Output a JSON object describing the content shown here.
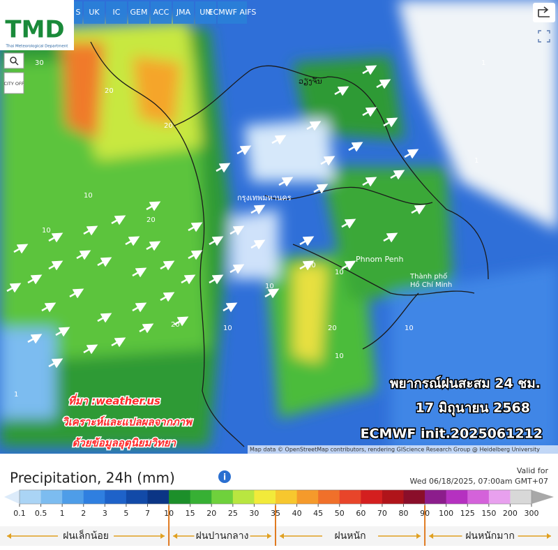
{
  "logo": {
    "title": "TMD",
    "subtitle": "Thai Meteorological Department"
  },
  "model_tabs": [
    "S",
    "UK",
    "IC",
    "GEM",
    "ACC",
    "JMA",
    "UM",
    "ECMWF AIFS"
  ],
  "controls": {
    "city": "CITY OFF"
  },
  "map": {
    "places": [
      "กรุงเทพมหานคร",
      "Phnom Penh",
      "Thành phố",
      "Hồ Chí Minh",
      "ວຽງຈັນ"
    ],
    "contour_labels": [
      "30",
      "20",
      "10",
      "20",
      "10",
      "1",
      "20",
      "10",
      "20",
      "10",
      "1",
      "10",
      "20",
      "1",
      "10",
      "20",
      "1",
      "10"
    ],
    "overlay": {
      "headline": "พยากรณ์ฝนสะสม 24 ชม.",
      "date": "17 มิถุนายน 2568",
      "model": "ECMWF init.2025061212"
    },
    "credits": [
      "ที่มา :weather.us",
      "วิเคราะห์และแปลผลจากภาพ",
      "ด้วยข้อมูลอุตุนิยมวิทยา"
    ],
    "attribution": "Map data © OpenStreetMap contributors, rendering GIScience Research Group @ Heidelberg University"
  },
  "legend": {
    "title": "Precipitation, 24h (mm)",
    "valid_label": "Valid for",
    "valid_time": "Wed 06/18/2025, 07:00am GMT+07",
    "ticks": [
      0.1,
      0.5,
      1,
      2,
      3,
      5,
      7,
      10,
      15,
      20,
      25,
      30,
      35,
      40,
      45,
      50,
      60,
      70,
      80,
      90,
      100,
      125,
      150,
      200,
      300
    ],
    "colors": [
      "#dcebfa",
      "#aad4f5",
      "#7cbcf0",
      "#4e9de8",
      "#2f7fe0",
      "#1e62c9",
      "#124aa8",
      "#0b3585",
      "#1c8f2a",
      "#37b034",
      "#6fd13c",
      "#b9e640",
      "#f2ea3a",
      "#f7c72e",
      "#f59a2b",
      "#f0702a",
      "#e8452a",
      "#d41f1f",
      "#b0141a",
      "#8a0e2a",
      "#8c1d8c",
      "#b531c0",
      "#d462da",
      "#e8a0ee",
      "#d8d8d8",
      "#a8a8a8"
    ],
    "categories": [
      "ฝนเล็กน้อย",
      "ฝนปานกลาง",
      "ฝนหนัก",
      "ฝนหนักมาก"
    ]
  }
}
